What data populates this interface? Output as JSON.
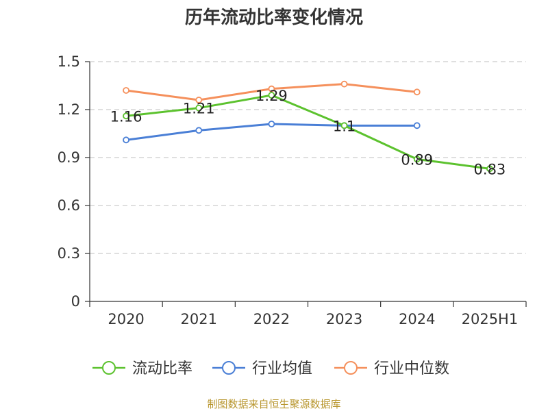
{
  "chart_data": {
    "type": "line",
    "title": "历年流动比率变化情况",
    "categories": [
      "2020",
      "2021",
      "2022",
      "2023",
      "2024",
      "2025H1"
    ],
    "ylim": [
      0,
      1.5
    ],
    "yticks": [
      "0",
      "0.3",
      "0.6",
      "0.9",
      "1.2",
      "1.5"
    ],
    "grid": true,
    "legend_position": "bottom",
    "series": [
      {
        "name": "流动比率",
        "color": "#5cc22e",
        "values": [
          1.16,
          1.21,
          1.29,
          1.1,
          0.89,
          0.83
        ],
        "labels": [
          "1.16",
          "1.21",
          "1.29",
          "1.1",
          "0.89",
          "0.83"
        ],
        "show_labels": true
      },
      {
        "name": "行业均值",
        "color": "#4a7fd6",
        "values": [
          1.01,
          1.07,
          1.11,
          1.1,
          1.1,
          null
        ],
        "show_labels": false
      },
      {
        "name": "行业中位数",
        "color": "#f5905c",
        "values": [
          1.32,
          1.26,
          1.33,
          1.36,
          1.31,
          null
        ],
        "show_labels": false
      }
    ]
  },
  "source_note": "制图数据来自恒生聚源数据库"
}
